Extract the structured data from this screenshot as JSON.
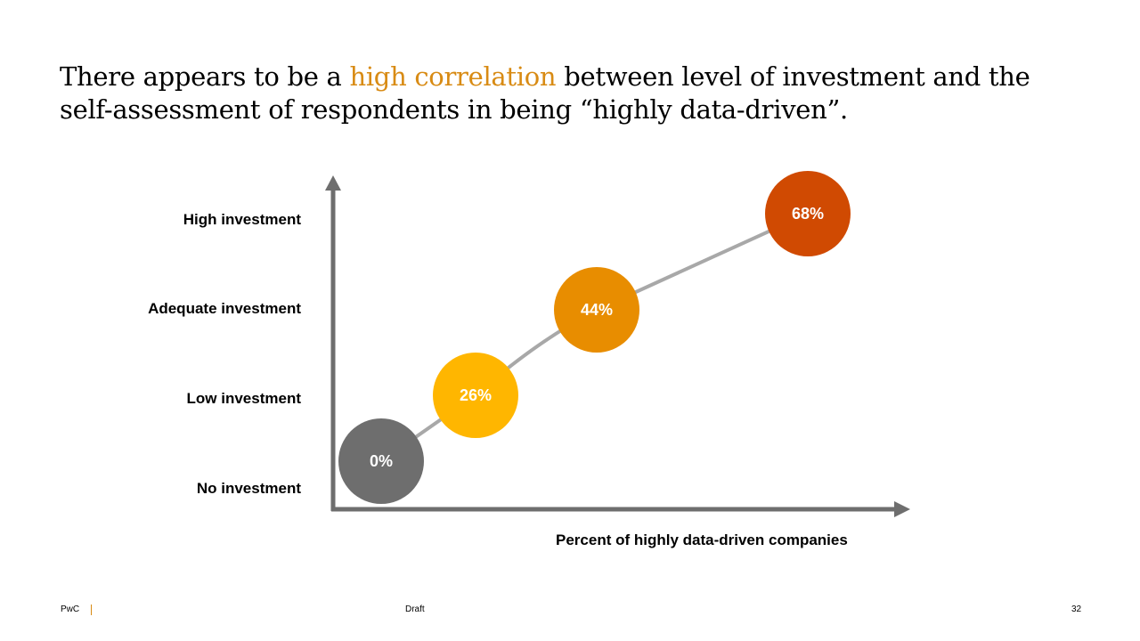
{
  "title": {
    "before": "There appears to be a ",
    "highlight": "high correlation",
    "after": " between level of investment and the self-assessment of respondents in being “highly data-driven”."
  },
  "chart_data": {
    "type": "scatter",
    "title": "",
    "xlabel": "Percent of highly data-driven companies",
    "ylabel": "",
    "y_categories": [
      "No investment",
      "Low investment",
      "Adequate investment",
      "High investment"
    ],
    "points": [
      {
        "category": "No investment",
        "value": 0,
        "label": "0%",
        "color": "#6E6E6E"
      },
      {
        "category": "Low investment",
        "value": 26,
        "label": "26%",
        "color": "#FFB600"
      },
      {
        "category": "Adequate investment",
        "value": 44,
        "label": "44%",
        "color": "#E88D00"
      },
      {
        "category": "High investment",
        "value": 68,
        "label": "68%",
        "color": "#D04A02"
      }
    ],
    "line_color": "#A8A8A8",
    "axis_color": "#6E6E6E"
  },
  "footer": {
    "brand": "PwC",
    "status": "Draft",
    "page": "32"
  }
}
